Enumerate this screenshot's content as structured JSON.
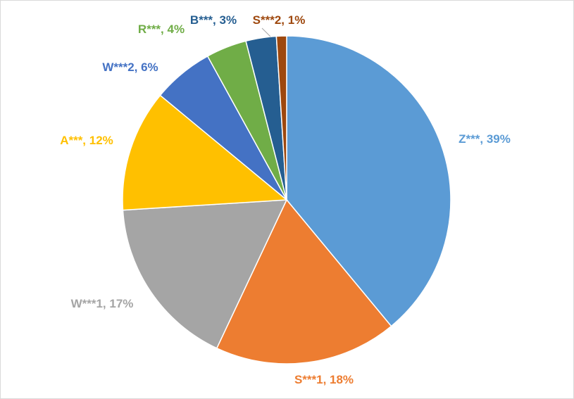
{
  "chart_data": {
    "type": "pie",
    "title": "",
    "slices": [
      {
        "label": "Z***",
        "value": 39,
        "display": "Z***, 39%",
        "color": "#5b9bd5"
      },
      {
        "label": "S***1",
        "value": 18,
        "display": "S***1, 18%",
        "color": "#ed7d31"
      },
      {
        "label": "W***1",
        "value": 17,
        "display": "W***1, 17%",
        "color": "#a5a5a5"
      },
      {
        "label": "A***",
        "value": 12,
        "display": "A***, 12%",
        "color": "#ffc000"
      },
      {
        "label": "W***2",
        "value": 6,
        "display": "W***2, 6%",
        "color": "#4472c4"
      },
      {
        "label": "R***",
        "value": 4,
        "display": "R***, 4%",
        "color": "#70ad47"
      },
      {
        "label": "B***",
        "value": 3,
        "display": "B***, 3%",
        "color": "#255e91"
      },
      {
        "label": "S***2",
        "value": 1,
        "display": "S***2, 1%",
        "color": "#9e480e"
      }
    ],
    "legend": "none",
    "data_labels": "category-and-percent"
  }
}
